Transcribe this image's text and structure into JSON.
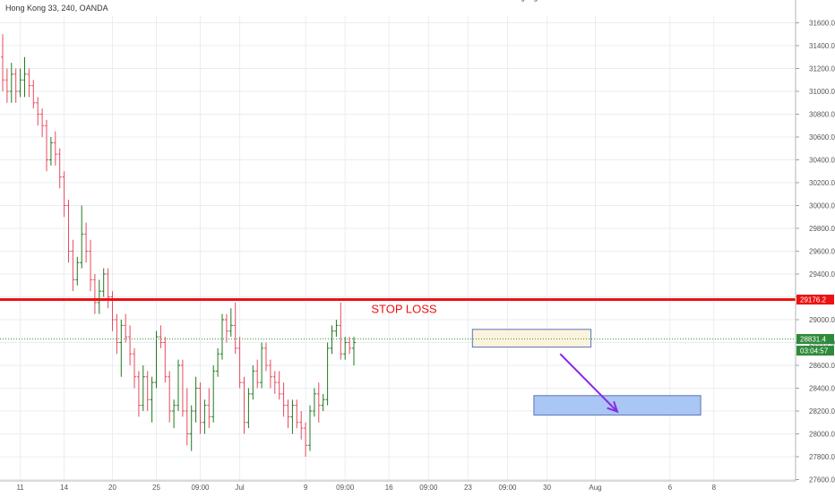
{
  "chart_data": {
    "type": "candlestick",
    "title": "Hong Kong 33, 240, OANDA",
    "ylim": [
      27500,
      31750
    ],
    "y_ticks": [
      27600,
      27800,
      28000,
      28200,
      28400,
      28600,
      28800,
      29000,
      29200,
      29400,
      29600,
      29800,
      30000,
      30200,
      30400,
      30600,
      30800,
      31000,
      31200,
      31400,
      31600
    ],
    "y_tick_labels": [
      "27600.0",
      "27800.0",
      "28000.0",
      "28200.0",
      "28400.0",
      "28600.0",
      "28800.0",
      "29000.0",
      "",
      "29400.0",
      "29600.0",
      "29800.0",
      "30000.0",
      "30200.0",
      "30400.0",
      "30600.0",
      "30800.0",
      "31000.0",
      "31200.0",
      "31400.0",
      "31600.0"
    ],
    "x_range": [
      0,
      176
    ],
    "x_ticks": [
      {
        "label": "11",
        "x": 4
      },
      {
        "label": "14",
        "x": 14
      },
      {
        "label": "20",
        "x": 25
      },
      {
        "label": "25",
        "x": 35
      },
      {
        "label": "09:00",
        "x": 45
      },
      {
        "label": "Jul",
        "x": 54
      },
      {
        "label": "9",
        "x": 69
      },
      {
        "label": "09:00",
        "x": 78
      },
      {
        "label": "16",
        "x": 88
      },
      {
        "label": "09:00",
        "x": 97
      },
      {
        "label": "23",
        "x": 106
      },
      {
        "label": "09:00",
        "x": 115
      },
      {
        "label": "30",
        "x": 124
      },
      {
        "label": "Aug",
        "x": 135
      },
      {
        "label": "6",
        "x": 152
      },
      {
        "label": "8",
        "x": 162
      }
    ],
    "candles": [
      [
        31300,
        31500,
        31000,
        31100
      ],
      [
        31100,
        31200,
        30900,
        31000
      ],
      [
        31000,
        31250,
        30900,
        31150
      ],
      [
        31150,
        31200,
        30900,
        31000
      ],
      [
        31000,
        31200,
        30950,
        31100
      ],
      [
        31100,
        31300,
        30950,
        31150
      ],
      [
        31150,
        31200,
        30950,
        31050
      ],
      [
        31050,
        31100,
        30850,
        30900
      ],
      [
        30900,
        30950,
        30700,
        30800
      ],
      [
        30800,
        30850,
        30600,
        30700
      ],
      [
        30700,
        30750,
        30300,
        30400
      ],
      [
        30400,
        30600,
        30350,
        30550
      ],
      [
        30550,
        30650,
        30350,
        30450
      ],
      [
        30450,
        30500,
        30150,
        30250
      ],
      [
        30250,
        30300,
        29900,
        30000
      ],
      [
        30000,
        30050,
        29500,
        29600
      ],
      [
        29600,
        29700,
        29250,
        29350
      ],
      [
        29350,
        29550,
        29300,
        29500
      ],
      [
        29500,
        30000,
        29450,
        29750
      ],
      [
        29750,
        29850,
        29500,
        29600
      ],
      [
        29600,
        29700,
        29250,
        29350
      ],
      [
        29350,
        29400,
        29050,
        29150
      ],
      [
        29150,
        29350,
        29050,
        29250
      ],
      [
        29250,
        29450,
        29200,
        29400
      ],
      [
        29400,
        29450,
        29100,
        29200
      ],
      [
        29200,
        29250,
        28900,
        29000
      ],
      [
        29000,
        29050,
        28700,
        28800
      ],
      [
        28800,
        29000,
        28500,
        28950
      ],
      [
        28950,
        29050,
        28800,
        28850
      ],
      [
        28850,
        28950,
        28600,
        28700
      ],
      [
        28700,
        28750,
        28400,
        28500
      ],
      [
        28500,
        28550,
        28150,
        28250
      ],
      [
        28250,
        28600,
        28200,
        28500
      ],
      [
        28500,
        28550,
        28200,
        28300
      ],
      [
        28300,
        28500,
        28100,
        28450
      ],
      [
        28450,
        28900,
        28400,
        28850
      ],
      [
        28850,
        28950,
        28750,
        28800
      ],
      [
        28800,
        28850,
        28450,
        28500
      ],
      [
        28500,
        28550,
        28100,
        28200
      ],
      [
        28200,
        28300,
        28050,
        28250
      ],
      [
        28250,
        28650,
        28200,
        28600
      ],
      [
        28600,
        28650,
        28150,
        28200
      ],
      [
        28200,
        28400,
        27900,
        28000
      ],
      [
        28000,
        28250,
        27850,
        28200
      ],
      [
        28200,
        28500,
        28100,
        28400
      ],
      [
        28400,
        28450,
        28000,
        28100
      ],
      [
        28100,
        28300,
        28000,
        28250
      ],
      [
        28250,
        28400,
        28050,
        28150
      ],
      [
        28150,
        28600,
        28100,
        28550
      ],
      [
        28550,
        28750,
        28500,
        28700
      ],
      [
        28700,
        29050,
        28650,
        29000
      ],
      [
        29000,
        29050,
        28800,
        28900
      ],
      [
        28900,
        29100,
        28850,
        28950
      ],
      [
        28950,
        29150,
        28700,
        28750
      ],
      [
        28750,
        28850,
        28400,
        28450
      ],
      [
        28450,
        28500,
        28000,
        28100
      ],
      [
        28100,
        28400,
        28050,
        28350
      ],
      [
        28350,
        28600,
        28300,
        28550
      ],
      [
        28550,
        28650,
        28400,
        28450
      ],
      [
        28450,
        28800,
        28400,
        28750
      ],
      [
        28750,
        28800,
        28550,
        28600
      ],
      [
        28600,
        28650,
        28400,
        28500
      ],
      [
        28500,
        28550,
        28350,
        28450
      ],
      [
        28450,
        28550,
        28300,
        28350
      ],
      [
        28350,
        28450,
        28150,
        28250
      ],
      [
        28250,
        28300,
        28050,
        28150
      ],
      [
        28150,
        28300,
        28000,
        28250
      ],
      [
        28250,
        28300,
        28050,
        28100
      ],
      [
        28100,
        28200,
        27950,
        28050
      ],
      [
        28050,
        28100,
        27800,
        27900
      ],
      [
        27900,
        28250,
        27850,
        28200
      ],
      [
        28200,
        28400,
        28150,
        28350
      ],
      [
        28350,
        28450,
        28100,
        28250
      ],
      [
        28250,
        28350,
        28200,
        28300
      ],
      [
        28300,
        28800,
        28250,
        28750
      ],
      [
        28750,
        28950,
        28700,
        28900
      ],
      [
        28900,
        29000,
        28850,
        28950
      ],
      [
        28950,
        29150,
        28650,
        28700
      ],
      [
        28700,
        28850,
        28650,
        28800
      ],
      [
        28800,
        28850,
        28700,
        28750
      ],
      [
        28750,
        28850,
        28600,
        28800
      ]
    ],
    "horizontal_lines": [
      {
        "price": 29176.2,
        "color": "#ee1111",
        "label": "STOP LOSS"
      },
      {
        "price": 28831.4,
        "color": "#3a9a3a",
        "style": "dotted"
      }
    ],
    "price_tags": [
      {
        "text": "29176.2",
        "price": 29176.2,
        "color": "#ee1111"
      },
      {
        "text": "28831.4",
        "price": 28831.4,
        "color": "#2e8b3a"
      },
      {
        "text": "03:04:57",
        "price": 28729,
        "color": "#2e8b3a"
      }
    ],
    "annotations": [
      {
        "type": "callout",
        "text": "Swing High",
        "x": 117,
        "price": 29460
      },
      {
        "type": "box",
        "x1": 107,
        "x2": 134,
        "p1": 28915,
        "p2": 28760,
        "fill": "#fbf3dc",
        "stroke": "#5a74b8"
      },
      {
        "type": "box",
        "x1": 121,
        "x2": 159,
        "p1": 28335,
        "p2": 28165,
        "fill": "#a9c6f4",
        "stroke": "#5a74b8"
      },
      {
        "type": "arrow",
        "x1": 127,
        "p1": 28700,
        "x2": 140,
        "p2": 28195,
        "color": "#8a2be2"
      }
    ]
  }
}
